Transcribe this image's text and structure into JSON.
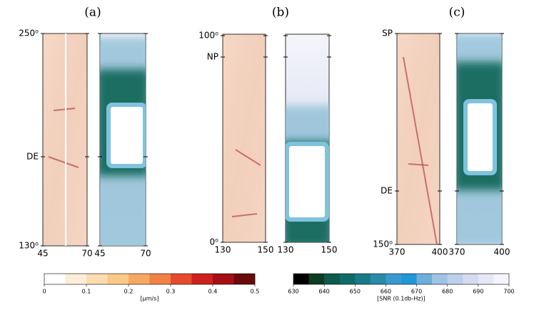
{
  "panels": [
    {
      "label": "(a)",
      "y_labels": [
        "250⁰",
        "DE",
        "130⁰"
      ],
      "x_ticks": [
        45,
        70
      ]
    },
    {
      "label": "(b)",
      "y_labels": [
        "100⁰",
        "NP",
        "0⁰"
      ],
      "x_ticks": [
        130,
        150
      ]
    },
    {
      "label": "(c)",
      "y_labels": [
        "SP",
        "DE",
        "150⁰"
      ],
      "x_ticks": [
        370,
        400
      ]
    }
  ],
  "colorbars": [
    {
      "label": "[μm/s]",
      "lim": [
        0,
        0.5
      ],
      "ticks": [
        0,
        0.1,
        0.2,
        0.3,
        0.4,
        0.5
      ],
      "colors": [
        "#ffffff",
        "#fdeed8",
        "#fcdcb0",
        "#fbc987",
        "#f8a862",
        "#f28145",
        "#e54a2c",
        "#cc211f",
        "#a50f15",
        "#6b0a0a"
      ]
    },
    {
      "label": "[SNR (0.1db-Hz)]",
      "lim": [
        630,
        700
      ],
      "ticks": [
        630,
        640,
        650,
        660,
        670,
        680,
        690,
        700
      ],
      "colors": [
        "#000000",
        "#0e3b22",
        "#0d5a4d",
        "#106a68",
        "#177a86",
        "#2a8aa8",
        "#3a99cf",
        "#1f97d8",
        "#6eaedb",
        "#9ec3e6",
        "#bccfeb",
        "#d4dbf0",
        "#e6e8f6",
        "#f4f4fb"
      ]
    }
  ]
}
